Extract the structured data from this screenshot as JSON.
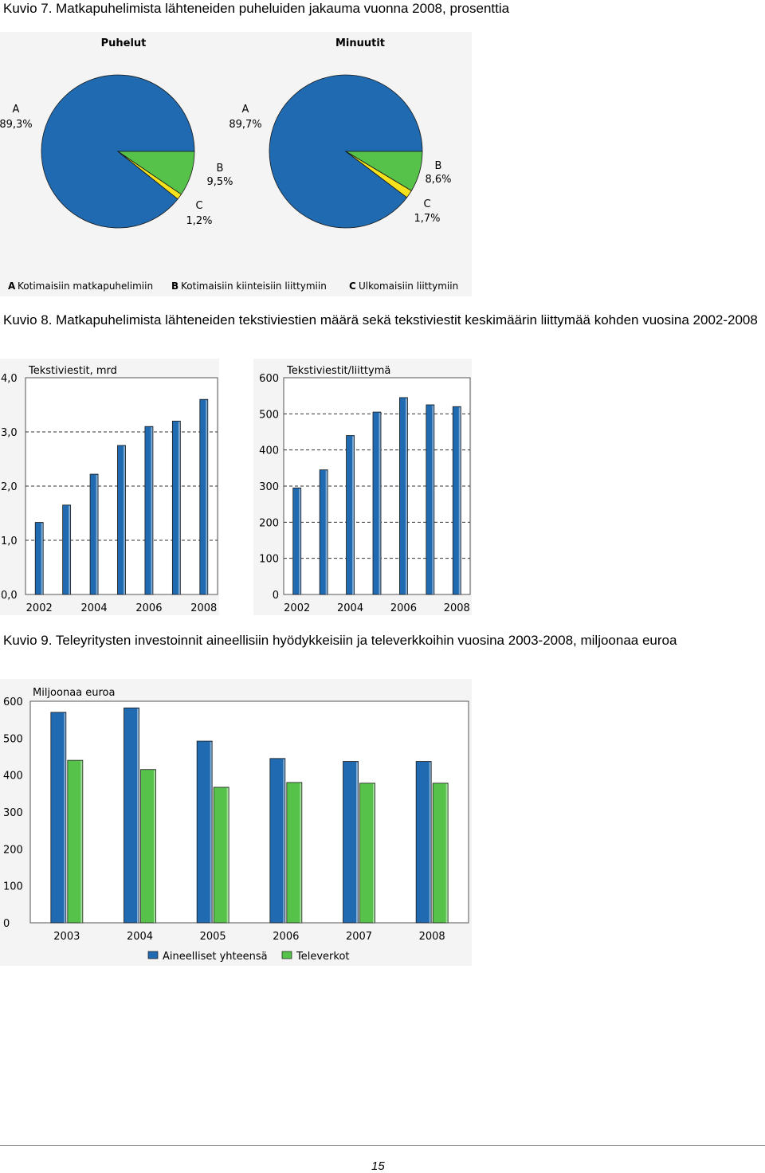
{
  "captions": {
    "kuvio7": "Kuvio 7. Matkapuhelimista lähteneiden puheluiden jakauma vuonna 2008, prosenttia",
    "kuvio8": "Kuvio 8. Matkapuhelimista lähteneiden tekstiviestien määrä sekä tekstiviestit keskimäärin liittymää kohden vuosina 2002-2008",
    "kuvio9": "Kuvio 9. Teleyritysten investoinnit aineellisiin hyödykkeisiin ja televerkkoihin vuosina 2003-2008, miljoonaa euroa"
  },
  "page_number": "15",
  "colors": {
    "blue": "#1f6ab0",
    "green": "#56c24a",
    "yellow": "#f5e11c",
    "panel": "#f4f4f4"
  },
  "chart_data": [
    {
      "type": "pie",
      "title": "Puhelut",
      "slices": [
        {
          "letter": "A",
          "label": "Kotimaisiin matkapuhelimiin",
          "value": 89.3,
          "text": "89,3%"
        },
        {
          "letter": "B",
          "label": "Kotimaisiin kiinteisiin liittymiin",
          "value": 9.5,
          "text": "9,5%"
        },
        {
          "letter": "C",
          "label": "Ulkomaisiin liittymiin",
          "value": 1.2,
          "text": "1,2%"
        }
      ]
    },
    {
      "type": "pie",
      "title": "Minuutit",
      "slices": [
        {
          "letter": "A",
          "label": "Kotimaisiin matkapuhelimiin",
          "value": 89.7,
          "text": "89,7%"
        },
        {
          "letter": "B",
          "label": "Kotimaisiin kiinteisiin liittymiin",
          "value": 8.6,
          "text": "8,6%"
        },
        {
          "letter": "C",
          "label": "Ulkomaisiin liittymiin",
          "value": 1.7,
          "text": "1,7%"
        }
      ]
    },
    {
      "type": "bar",
      "title": "Tekstiviestit, mrd",
      "categories": [
        "2002",
        "2003",
        "2004",
        "2005",
        "2006",
        "2007",
        "2008"
      ],
      "values": [
        1.33,
        1.65,
        2.22,
        2.75,
        3.1,
        3.2,
        3.6
      ],
      "ylim": [
        0,
        4
      ],
      "yticks": [
        "0,0",
        "1,0",
        "2,0",
        "3,0",
        "4,0"
      ],
      "xticks": [
        "2002",
        "2004",
        "2006",
        "2008"
      ]
    },
    {
      "type": "bar",
      "title": "Tekstiviestit/liittymä",
      "categories": [
        "2002",
        "2003",
        "2004",
        "2005",
        "2006",
        "2007",
        "2008"
      ],
      "values": [
        295,
        345,
        440,
        505,
        545,
        525,
        520
      ],
      "ylim": [
        0,
        600
      ],
      "yticks": [
        "0",
        "100",
        "200",
        "300",
        "400",
        "500",
        "600"
      ],
      "xticks": [
        "2002",
        "2004",
        "2006",
        "2008"
      ]
    },
    {
      "type": "bar",
      "title": "Miljoonaa euroa",
      "categories": [
        "2003",
        "2004",
        "2005",
        "2006",
        "2007",
        "2008"
      ],
      "series": [
        {
          "name": "Aineelliset yhteensä",
          "values": [
            570,
            582,
            492,
            445,
            437,
            437
          ]
        },
        {
          "name": "Televerkot",
          "values": [
            440,
            415,
            367,
            380,
            378,
            378
          ]
        }
      ],
      "ylim": [
        0,
        600
      ],
      "yticks": [
        "0",
        "100",
        "200",
        "300",
        "400",
        "500",
        "600"
      ],
      "legend": "bottom"
    }
  ]
}
